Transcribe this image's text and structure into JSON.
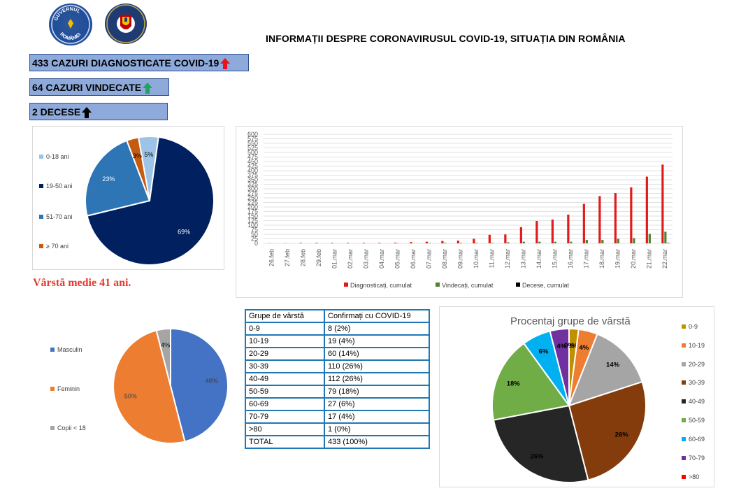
{
  "header": {
    "title": "INFORMAȚII DESPRE CORONAVIRUSUL COVID-19, SITUAȚIA DIN ROMÂNIA",
    "logo1_text": [
      "GUVERNUL",
      "ROMÂNIEI"
    ]
  },
  "banners": {
    "cases": "433 CAZURI DIAGNOSTICATE COVID-19",
    "recovered": "64 CAZURI VINDECATE",
    "deaths": "2 DECESE"
  },
  "colors": {
    "red_arrow": "#e8141c",
    "green_arrow": "#21a366",
    "black_arrow": "#000000",
    "banner_bg": "#8eaadb"
  },
  "media_age": "Vârstă medie 41 ani.",
  "age_table": {
    "headers": [
      "Grupe de vârstă",
      "Confirmați cu COVID-19"
    ],
    "rows": [
      [
        "0-9",
        "8 (2%)"
      ],
      [
        "10-19",
        "19 (4%)"
      ],
      [
        "20-29",
        "60 (14%)"
      ],
      [
        "30-39",
        "110 (26%)"
      ],
      [
        "40-49",
        "112 (26%)"
      ],
      [
        "50-59",
        "79 (18%)"
      ],
      [
        "60-69",
        "27 (6%)"
      ],
      [
        "70-79",
        "17 (4%)"
      ],
      [
        ">80",
        "1 (0%)"
      ],
      [
        "TOTAL",
        "433 (100%)"
      ]
    ]
  },
  "chart_data": [
    {
      "type": "pie",
      "categories": [
        "0-18 ani",
        "19-50 ani",
        "51-70 ani",
        "≥ 70 ani"
      ],
      "values": [
        5,
        69,
        23,
        3
      ],
      "labels": [
        "5%",
        "69%",
        "23%",
        "3%"
      ],
      "colors": [
        "#9dc3e6",
        "#002060",
        "#2e75b6",
        "#c55a11"
      ],
      "legend_position": "left"
    },
    {
      "type": "bar",
      "categories": [
        "26.feb",
        "27.feb",
        "28.feb",
        "29.feb",
        "01.mar",
        "02.mar",
        "03.mar",
        "04.mar",
        "05.mar",
        "06.mar",
        "07.mar",
        "08.mar",
        "09.mar",
        "10.mar",
        "11.mar",
        "12.mar",
        "13.mar",
        "14.mar",
        "15.mar",
        "16.mar",
        "17.mar",
        "18.mar",
        "19.mar",
        "20.mar",
        "21.mar",
        "22.mar"
      ],
      "series": [
        {
          "name": "Diagnosticați, cumulat",
          "color": "#e31a1c",
          "values": [
            1,
            1,
            3,
            3,
            3,
            3,
            3,
            3,
            4,
            7,
            9,
            13,
            15,
            25,
            47,
            49,
            89,
            123,
            131,
            158,
            217,
            260,
            277,
            308,
            367,
            433
          ]
        },
        {
          "name": "Vindecați, cumulat",
          "color": "#548235",
          "values": [
            0,
            0,
            0,
            0,
            0,
            0,
            0,
            0,
            1,
            1,
            2,
            3,
            3,
            3,
            3,
            6,
            9,
            9,
            9,
            9,
            19,
            19,
            25,
            29,
            52,
            64
          ]
        },
        {
          "name": "Decese, cumulat",
          "color": "#000000",
          "values": [
            0,
            0,
            0,
            0,
            0,
            0,
            0,
            0,
            0,
            0,
            0,
            0,
            0,
            0,
            0,
            0,
            0,
            0,
            0,
            0,
            0,
            0,
            0,
            0,
            0,
            2
          ]
        }
      ],
      "yticks": [
        0,
        25,
        50,
        75,
        100,
        125,
        150,
        175,
        200,
        225,
        250,
        275,
        300,
        325,
        350,
        375,
        400,
        425,
        450,
        475,
        500,
        525,
        550,
        575,
        600
      ],
      "ylim": [
        0,
        600
      ],
      "grid": true,
      "legend_position": "bottom"
    },
    {
      "type": "pie",
      "categories": [
        "Masculin",
        "Feminin",
        "Copii < 18"
      ],
      "values": [
        46,
        50,
        4
      ],
      "labels": [
        "46%",
        "50%",
        "4%"
      ],
      "colors": [
        "#4472c4",
        "#ed7d31",
        "#a5a5a5"
      ],
      "legend_position": "left"
    },
    {
      "type": "pie",
      "title": "Procentaj grupe de vârstă",
      "categories": [
        "0-9",
        "10-19",
        "20-29",
        "30-39",
        "40-49",
        "50-59",
        "60-69",
        "70-79",
        ">80"
      ],
      "values": [
        2,
        4,
        14,
        26,
        26,
        18,
        6,
        4,
        0
      ],
      "labels": [
        "2%",
        "4%",
        "14%",
        "26%",
        "26%",
        "18%",
        "6%",
        "4%",
        "0%"
      ],
      "colors": [
        "#bf9000",
        "#ed7d31",
        "#a5a5a5",
        "#843c0c",
        "#262626",
        "#70ad47",
        "#00b0f0",
        "#7030a0",
        "#ff0000"
      ],
      "legend_position": "right"
    }
  ]
}
